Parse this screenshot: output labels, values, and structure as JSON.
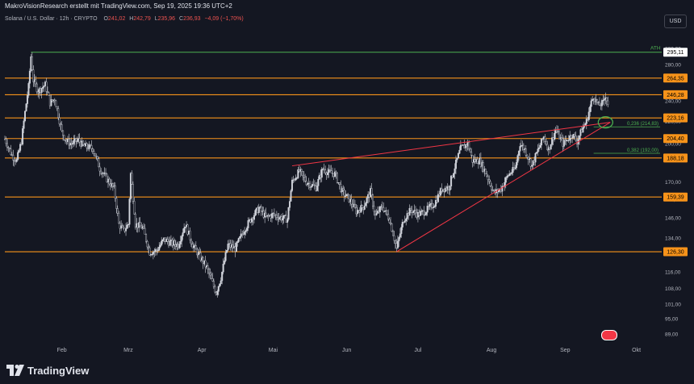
{
  "credit": "MakroVisionResearch erstellt mit TradingView.com, Sep 19, 2025 19:36 UTC+2",
  "legend": {
    "symbol": "Solana / U.S. Dollar · 12h · CRYPTO",
    "o_label": "O",
    "o": "241,02",
    "h_label": "H",
    "h": "242,79",
    "l_label": "L",
    "l": "235,96",
    "c_label": "C",
    "c": "236,93",
    "change": "−4,09 (−1,70%)"
  },
  "currency_button": "USD",
  "brand": "TradingView",
  "colors": {
    "background": "#141722",
    "level": "#f7931a",
    "ath": "#4caf50",
    "trendline": "#f23645",
    "candle": "#d1d4dc",
    "fib": "#4caf50"
  },
  "chart_data": {
    "type": "candlestick",
    "title": "Solana / U.S. Dollar · 12h · CRYPTO",
    "y_scale": "log",
    "ylim": [
      86,
      302
    ],
    "y_ticks": [
      "300,00",
      "280,00",
      "240,00",
      "220,00",
      "200,00",
      "170,00",
      "158,00",
      "146,00",
      "134,00",
      "116,00",
      "108,00",
      "101,00",
      "95,00",
      "89,00"
    ],
    "x_range": [
      "2025-01-08",
      "2025-10-11"
    ],
    "x_ticks": [
      {
        "date": "2025-02-01",
        "label": "Feb"
      },
      {
        "date": "2025-03-01",
        "label": "Mrz"
      },
      {
        "date": "2025-04-01",
        "label": "Apr"
      },
      {
        "date": "2025-05-01",
        "label": "Mai"
      },
      {
        "date": "2025-06-01",
        "label": "Jun"
      },
      {
        "date": "2025-07-01",
        "label": "Jul"
      },
      {
        "date": "2025-08-01",
        "label": "Aug"
      },
      {
        "date": "2025-09-01",
        "label": "Sep"
      },
      {
        "date": "2025-10-01",
        "label": "Okt"
      }
    ],
    "ath": {
      "value": 295.11,
      "label": "295,11",
      "text": "ATH",
      "start": "2025-01-19"
    },
    "levels": [
      {
        "value": 264.35,
        "label": "264,35"
      },
      {
        "value": 246.28,
        "label": "246,28"
      },
      {
        "value": 223.16,
        "label": "223,16"
      },
      {
        "value": 204.4,
        "label": "204,40"
      },
      {
        "value": 188.18,
        "label": "188,18"
      },
      {
        "value": 159.39,
        "label": "159,39"
      },
      {
        "value": 126.3,
        "label": "126,30"
      }
    ],
    "fib_levels": [
      {
        "value": 214.83,
        "label": "0,236 (214,83)",
        "start": "2025-09-13"
      },
      {
        "value": 192.0,
        "label": "0,382 (192,00)",
        "start": "2025-09-13"
      }
    ],
    "trendlines": [
      {
        "start": {
          "date": "2025-05-09",
          "value": 182
        },
        "end": {
          "date": "2025-09-20",
          "value": 219
        }
      },
      {
        "start": {
          "date": "2025-06-22",
          "value": 126.3
        },
        "end": {
          "date": "2025-09-20",
          "value": 219
        }
      }
    ],
    "highlight": {
      "date": "2025-09-18",
      "value": 219
    },
    "price_path": [
      [
        "2025-01-08",
        204
      ],
      [
        "2025-01-11",
        190
      ],
      [
        "2025-01-13",
        186
      ],
      [
        "2025-01-15",
        202
      ],
      [
        "2025-01-18",
        255
      ],
      [
        "2025-01-19",
        290
      ],
      [
        "2025-01-20",
        262
      ],
      [
        "2025-01-22",
        250
      ],
      [
        "2025-01-25",
        257
      ],
      [
        "2025-01-27",
        238
      ],
      [
        "2025-01-29",
        242
      ],
      [
        "2025-02-01",
        210
      ],
      [
        "2025-02-03",
        202
      ],
      [
        "2025-02-05",
        200
      ],
      [
        "2025-02-08",
        203
      ],
      [
        "2025-02-10",
        198
      ],
      [
        "2025-02-14",
        196
      ],
      [
        "2025-02-17",
        180
      ],
      [
        "2025-02-20",
        172
      ],
      [
        "2025-02-23",
        165
      ],
      [
        "2025-02-25",
        142
      ],
      [
        "2025-02-27",
        138
      ],
      [
        "2025-03-01",
        142
      ],
      [
        "2025-03-02",
        176
      ],
      [
        "2025-03-04",
        142
      ],
      [
        "2025-03-07",
        140
      ],
      [
        "2025-03-10",
        126
      ],
      [
        "2025-03-13",
        127
      ],
      [
        "2025-03-16",
        133
      ],
      [
        "2025-03-19",
        131
      ],
      [
        "2025-03-22",
        130
      ],
      [
        "2025-03-25",
        142
      ],
      [
        "2025-03-28",
        130
      ],
      [
        "2025-03-31",
        124
      ],
      [
        "2025-04-03",
        118
      ],
      [
        "2025-04-07",
        106
      ],
      [
        "2025-04-09",
        113
      ],
      [
        "2025-04-12",
        130
      ],
      [
        "2025-04-15",
        128
      ],
      [
        "2025-04-19",
        139
      ],
      [
        "2025-04-22",
        146
      ],
      [
        "2025-04-25",
        152
      ],
      [
        "2025-04-28",
        146
      ],
      [
        "2025-05-01",
        148
      ],
      [
        "2025-05-04",
        146
      ],
      [
        "2025-05-07",
        145
      ],
      [
        "2025-05-09",
        170
      ],
      [
        "2025-05-12",
        178
      ],
      [
        "2025-05-15",
        170
      ],
      [
        "2025-05-19",
        166
      ],
      [
        "2025-05-22",
        180
      ],
      [
        "2025-05-24",
        177
      ],
      [
        "2025-05-27",
        176
      ],
      [
        "2025-05-30",
        163
      ],
      [
        "2025-06-02",
        158
      ],
      [
        "2025-06-05",
        150
      ],
      [
        "2025-06-08",
        153
      ],
      [
        "2025-06-11",
        163
      ],
      [
        "2025-06-13",
        147
      ],
      [
        "2025-06-16",
        153
      ],
      [
        "2025-06-19",
        145
      ],
      [
        "2025-06-22",
        128
      ],
      [
        "2025-06-25",
        145
      ],
      [
        "2025-06-28",
        151
      ],
      [
        "2025-07-01",
        148
      ],
      [
        "2025-07-04",
        150
      ],
      [
        "2025-07-08",
        155
      ],
      [
        "2025-07-11",
        165
      ],
      [
        "2025-07-14",
        166
      ],
      [
        "2025-07-16",
        178
      ],
      [
        "2025-07-19",
        196
      ],
      [
        "2025-07-22",
        200
      ],
      [
        "2025-07-24",
        186
      ],
      [
        "2025-07-27",
        186
      ],
      [
        "2025-07-30",
        175
      ],
      [
        "2025-08-02",
        162
      ],
      [
        "2025-08-05",
        165
      ],
      [
        "2025-08-08",
        175
      ],
      [
        "2025-08-11",
        180
      ],
      [
        "2025-08-13",
        200
      ],
      [
        "2025-08-15",
        195
      ],
      [
        "2025-08-18",
        182
      ],
      [
        "2025-08-20",
        192
      ],
      [
        "2025-08-23",
        206
      ],
      [
        "2025-08-25",
        195
      ],
      [
        "2025-08-28",
        212
      ],
      [
        "2025-08-31",
        200
      ],
      [
        "2025-09-02",
        204
      ],
      [
        "2025-09-04",
        208
      ],
      [
        "2025-09-06",
        202
      ],
      [
        "2025-09-08",
        212
      ],
      [
        "2025-09-10",
        220
      ],
      [
        "2025-09-12",
        238
      ],
      [
        "2025-09-13",
        245
      ],
      [
        "2025-09-15",
        235
      ],
      [
        "2025-09-17",
        238
      ],
      [
        "2025-09-18",
        246
      ],
      [
        "2025-09-19",
        236.93
      ]
    ]
  }
}
